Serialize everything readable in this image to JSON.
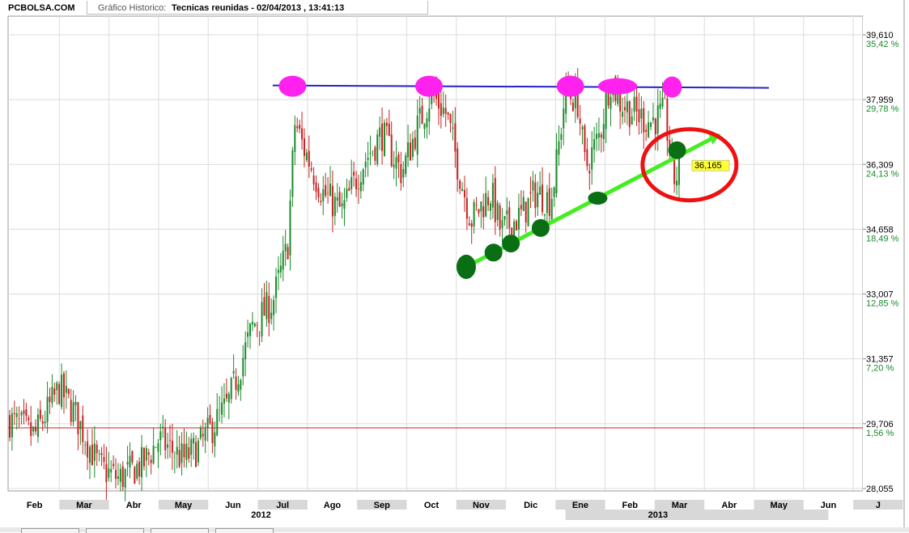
{
  "header": {
    "site": "PCBOLSA.COM",
    "chart_type_label": "Gráfico Historico:",
    "chart_title": "Tecnicas reunidas - 02/04/2013 , 13:41:13"
  },
  "colors": {
    "up": "#1a8a2a",
    "down": "#c82020",
    "resistance_line": "#2222cc",
    "support_line": "#44ee22",
    "top_markers": "#ff22ee",
    "bottom_markers": "#0a6e14",
    "circle": "#ee1111",
    "baseline": "#cc2020",
    "pct_label": "#1a8a2a",
    "price_tag": "#ffff33"
  },
  "chart_data": {
    "type": "candlestick",
    "title": "Tecnicas reunidas - 02/04/2013 , 13:41:13",
    "y_range": [
      28.055,
      39.61
    ],
    "y_ticks": [
      {
        "price": "39,610",
        "pct": "35,42 %",
        "value": 39.61
      },
      {
        "price": "37,959",
        "pct": "29,78 %",
        "value": 37.959
      },
      {
        "price": "36,309",
        "pct": "24,13 %",
        "value": 36.309
      },
      {
        "price": "34,658",
        "pct": "18,49 %",
        "value": 34.658
      },
      {
        "price": "33,007",
        "pct": "12,85 %",
        "value": 33.007
      },
      {
        "price": "31,357",
        "pct": "7,20 %",
        "value": 31.357
      },
      {
        "price": "29,706",
        "pct": "1,56 %",
        "value": 29.706
      },
      {
        "price": "28,055",
        "pct": "",
        "value": 28.055
      }
    ],
    "x_months": [
      "Feb",
      "Mar",
      "Abr",
      "May",
      "Jun",
      "Jul",
      "Ago",
      "Sep",
      "Oct",
      "Nov",
      "Dic",
      "Ene",
      "Feb",
      "Mar",
      "Abr",
      "May",
      "Jun",
      "J"
    ],
    "x_years": [
      {
        "label": "2012",
        "after_month_index": 5
      },
      {
        "label": "2013",
        "after_month_index": 13
      }
    ],
    "price_path": [
      [
        0,
        29.8
      ],
      [
        0.5,
        29.4
      ],
      [
        1.0,
        30.6
      ],
      [
        1.3,
        30.0
      ],
      [
        1.8,
        28.6
      ],
      [
        2.2,
        28.3
      ],
      [
        2.7,
        28.7
      ],
      [
        3.0,
        29.3
      ],
      [
        3.5,
        28.8
      ],
      [
        3.8,
        29.1
      ],
      [
        4.4,
        30.2
      ],
      [
        4.9,
        32.2
      ],
      [
        5.3,
        32.8
      ],
      [
        5.6,
        34.2
      ],
      [
        5.75,
        37.4
      ],
      [
        5.9,
        36.8
      ],
      [
        6.3,
        35.6
      ],
      [
        6.7,
        35.1
      ],
      [
        7.1,
        36.3
      ],
      [
        7.5,
        37.1
      ],
      [
        7.9,
        36.1
      ],
      [
        8.2,
        37.2
      ],
      [
        8.5,
        38.1
      ],
      [
        8.8,
        37.6
      ],
      [
        9.1,
        35.9
      ],
      [
        9.3,
        34.9
      ],
      [
        9.7,
        35.6
      ],
      [
        9.9,
        34.6
      ],
      [
        10.3,
        35.0
      ],
      [
        10.6,
        35.6
      ],
      [
        10.9,
        35.4
      ],
      [
        11.0,
        36.1
      ],
      [
        11.2,
        38.2
      ],
      [
        11.45,
        37.9
      ],
      [
        11.6,
        36.2
      ],
      [
        11.9,
        37.1
      ],
      [
        12.1,
        38.5
      ],
      [
        12.3,
        37.9
      ],
      [
        12.6,
        37.6
      ],
      [
        12.9,
        37.4
      ],
      [
        13.2,
        37.6
      ],
      [
        13.4,
        35.9
      ],
      [
        13.5,
        36.2
      ]
    ],
    "last_value_label": "36,165",
    "resistance_level": 38.3,
    "support_line_points": [
      [
        9.2,
        33.7
      ],
      [
        14.2,
        37.0
      ]
    ],
    "top_marker_positions": [
      5.7,
      8.45,
      11.3,
      12.25,
      13.35
    ],
    "bottom_marker_positions": [
      9.2,
      9.75,
      10.1,
      10.7,
      11.85,
      13.45
    ],
    "baseline_level": 29.6,
    "grid": true
  }
}
